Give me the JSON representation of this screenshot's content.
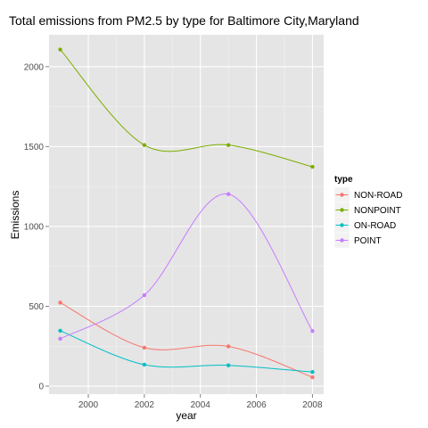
{
  "chart_data": {
    "type": "line",
    "title": "Total emissions from PM2.5 by type for Baltimore City,Maryland",
    "xlabel": "year",
    "ylabel": "Emissions",
    "x": [
      1999,
      2002,
      2005,
      2008
    ],
    "xlim": [
      1998.6,
      2008.4
    ],
    "ylim": [
      -50,
      2200
    ],
    "x_ticks": [
      2000,
      2002,
      2004,
      2006,
      2008
    ],
    "y_ticks": [
      0,
      500,
      1000,
      1500,
      2000
    ],
    "smoothed": true,
    "grid": true,
    "panel_background": "#e5e5e5",
    "grid_color": "#ffffff",
    "legend_title": "type",
    "legend_position": "right",
    "series": [
      {
        "name": "NON-ROAD",
        "color": "#f8766d",
        "values": [
          522.9,
          240.8,
          248.9,
          55.8
        ]
      },
      {
        "name": "NONPOINT",
        "color": "#7cae00",
        "values": [
          2107.6,
          1509.5,
          1509.5,
          1373.2
        ]
      },
      {
        "name": "ON-ROAD",
        "color": "#00bfc4",
        "values": [
          346.8,
          134.3,
          130.4,
          88.3
        ]
      },
      {
        "name": "POINT",
        "color": "#c77cff",
        "values": [
          296.8,
          569.3,
          1202.5,
          344.98
        ]
      }
    ]
  }
}
